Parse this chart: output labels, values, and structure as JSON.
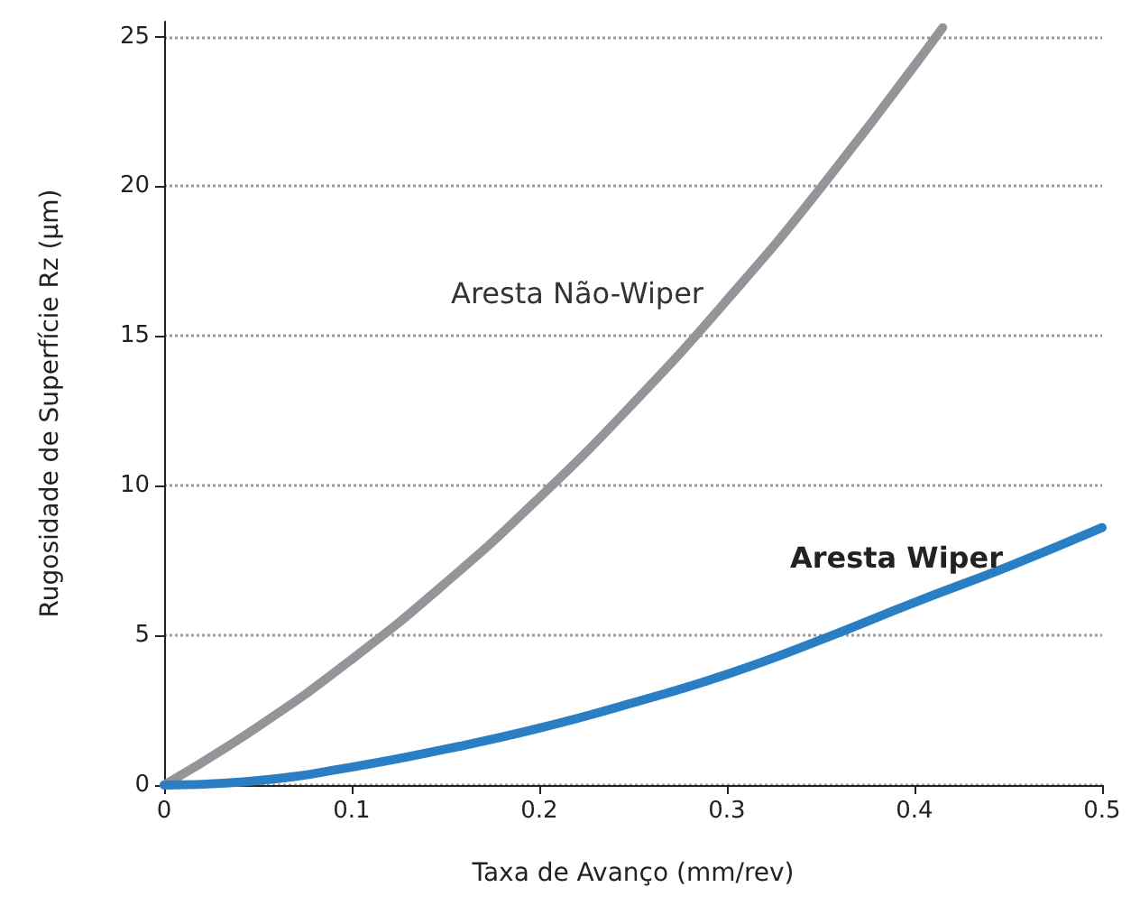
{
  "chart_data": {
    "type": "line",
    "xlabel": "Taxa de Avanço (mm/rev)",
    "ylabel": "Rugosidade de Superfície Rz (µm)",
    "xlim": [
      0,
      0.5
    ],
    "xticks": [
      0,
      0.1,
      0.2,
      0.3,
      0.4,
      0.5
    ],
    "ylim": [
      0,
      25.5
    ],
    "yticks": [
      0,
      5,
      10,
      15,
      20,
      25
    ],
    "grid": "y",
    "legend": false,
    "marker": "none",
    "line_style": "solid",
    "series": [
      {
        "name": "Aresta Não-Wiper",
        "color": "#939598",
        "x": [
          0,
          0.05,
          0.1,
          0.15,
          0.2,
          0.25,
          0.3,
          0.35,
          0.415
        ],
        "values": [
          0,
          1.95,
          4.2,
          6.75,
          9.6,
          12.75,
          16.2,
          19.95,
          25.3
        ]
      },
      {
        "name": "Aresta Wiper",
        "color": "#2a7fc4",
        "x": [
          0,
          0.05,
          0.1,
          0.15,
          0.2,
          0.25,
          0.3,
          0.35,
          0.4,
          0.45,
          0.5
        ],
        "values": [
          0,
          0.15,
          0.6,
          1.2,
          1.9,
          2.75,
          3.7,
          4.85,
          6.1,
          7.3,
          8.6
        ]
      }
    ]
  }
}
